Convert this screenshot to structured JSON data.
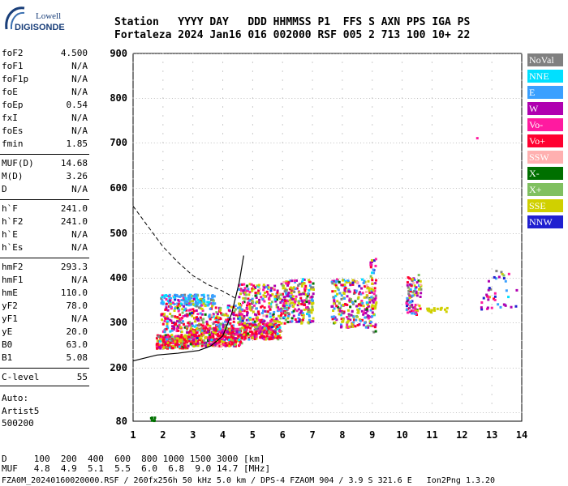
{
  "logo": {
    "line1": "Lowell",
    "line2": "DIGISONDE"
  },
  "header": {
    "row1": "Station   YYYY DAY   DDD HHMMSS P1  FFS S AXN PPS IGA PS",
    "row2": "Fortaleza 2024 Jan16 016 002000 RSF 005 2 713 100 10+ 22"
  },
  "params_group1": [
    {
      "k": "foF2",
      "v": "4.500"
    },
    {
      "k": "foF1",
      "v": "N/A"
    },
    {
      "k": "foF1p",
      "v": "N/A"
    },
    {
      "k": "foE",
      "v": "N/A"
    },
    {
      "k": "foEp",
      "v": "0.54"
    },
    {
      "k": "fxI",
      "v": "N/A"
    },
    {
      "k": "foEs",
      "v": "N/A"
    },
    {
      "k": "fmin",
      "v": "1.85"
    }
  ],
  "params_group2": [
    {
      "k": "MUF(D)",
      "v": "14.68"
    },
    {
      "k": "M(D)",
      "v": "3.26"
    },
    {
      "k": "D",
      "v": "N/A"
    }
  ],
  "params_group3": [
    {
      "k": "h`F",
      "v": "241.0"
    },
    {
      "k": "h`F2",
      "v": "241.0"
    },
    {
      "k": "h`E",
      "v": "N/A"
    },
    {
      "k": "h`Es",
      "v": "N/A"
    }
  ],
  "params_group4": [
    {
      "k": "hmF2",
      "v": "293.3"
    },
    {
      "k": "hmF1",
      "v": "N/A"
    },
    {
      "k": "hmE",
      "v": "110.0"
    },
    {
      "k": "yF2",
      "v": "78.0"
    },
    {
      "k": "yF1",
      "v": "N/A"
    },
    {
      "k": "yE",
      "v": "20.0"
    },
    {
      "k": "B0",
      "v": "63.0"
    },
    {
      "k": "B1",
      "v": "5.08"
    }
  ],
  "params_group5": [
    {
      "k": "C-level",
      "v": "55"
    }
  ],
  "auto": {
    "line1": "Auto:",
    "line2": "Artist5",
    "line3": "500200"
  },
  "legend": [
    {
      "label": "NoVal",
      "color": "#808080"
    },
    {
      "label": "NNE",
      "color": "#00e0ff"
    },
    {
      "label": "E",
      "color": "#3aa0ff"
    },
    {
      "label": "W",
      "color": "#b000b0"
    },
    {
      "label": "Vo-",
      "color": "#ff1aa0"
    },
    {
      "label": "Vo+",
      "color": "#ff0030"
    },
    {
      "label": "SSW",
      "color": "#ffb0b0"
    },
    {
      "label": "X-",
      "color": "#007000"
    },
    {
      "label": "X+",
      "color": "#80c060"
    },
    {
      "label": "SSE",
      "color": "#d0d000"
    },
    {
      "label": "NNW",
      "color": "#2020d0"
    }
  ],
  "chart_data": {
    "type": "scatter",
    "title": "",
    "xlabel": "",
    "ylabel": "",
    "xlim": [
      1,
      14
    ],
    "ylim": [
      80,
      900
    ],
    "x_ticks": [
      "1",
      "2",
      "3",
      "4",
      "5",
      "6",
      "7",
      "8",
      "9",
      "10",
      "11",
      "12",
      "13",
      "14"
    ],
    "y_ticks": [
      "80",
      "200",
      "300",
      "400",
      "500",
      "600",
      "700",
      "800",
      "900"
    ],
    "features": [
      "Dense echo clusters between ~2 and ~10.5 MHz at ~230–460 km virtual height",
      "Dashed MUF curve descending from ~560 km near 1 MHz to ~350 km near 4.5 MHz",
      "Solid trace from ~215 km at 1 MHz rising steeply to ~450 km near 4.5 MHz",
      "Scattered returns at 11–14 MHz near 330–380 km"
    ]
  },
  "bottom": {
    "d_row": "D     100  200  400  600  800 1000 1500 3000 [km]",
    "muf_row": "MUF   4.8  4.9  5.1  5.5  6.0  6.8  9.0 14.7 [MHz]",
    "file_row": "FZA0M_20240160020000.RSF / 260fx256h 50 kHz 5.0 km / DPS-4 FZAOM 904 / 3.9 S 321.6 E   Ion2Png 1.3.20"
  }
}
